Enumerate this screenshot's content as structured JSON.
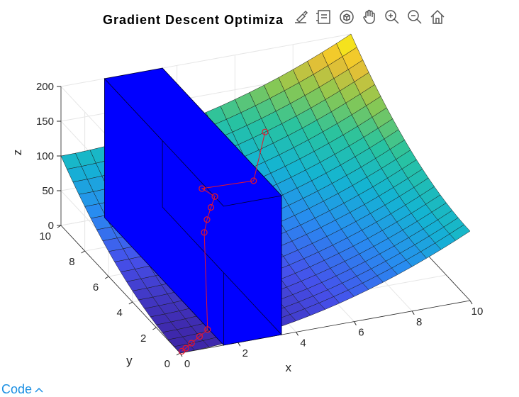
{
  "figure": {
    "title": "Gradient  Descent  Optimiza"
  },
  "toolbar": {
    "buttons": [
      {
        "icon": "brush-icon",
        "label": "Brush"
      },
      {
        "icon": "legend-icon",
        "label": "Legend"
      },
      {
        "icon": "rotate-3d-icon",
        "label": "Rotate 3D"
      },
      {
        "icon": "pan-icon",
        "label": "Pan"
      },
      {
        "icon": "zoom-in-icon",
        "label": "Zoom In"
      },
      {
        "icon": "zoom-out-icon",
        "label": "Zoom Out"
      },
      {
        "icon": "home-icon",
        "label": "Restore View"
      }
    ]
  },
  "code_toggle": {
    "label": "Code",
    "chevron": "^"
  },
  "chart_data": {
    "type": "surface",
    "title": "Gradient  Descent  Optimiza",
    "xlabel": "x",
    "ylabel": "y",
    "zlabel": "z",
    "xlim": [
      0,
      10
    ],
    "ylim": [
      0,
      10
    ],
    "zlim": [
      0,
      200
    ],
    "xticks": [
      "0",
      "2",
      "4",
      "6",
      "8",
      "10"
    ],
    "yticks": [
      "0",
      "2",
      "4",
      "6",
      "8",
      "10"
    ],
    "zticks": [
      "0",
      "50",
      "100",
      "150",
      "200"
    ],
    "grid": true,
    "colormap": "parula",
    "surface": {
      "function": "z = x^2 + y^2",
      "grid_step": 0.5
    },
    "obstacle": {
      "x_range": [
        1.5,
        3.5
      ],
      "y_range": [
        0,
        10
      ],
      "z_range": [
        0,
        200
      ],
      "color": "#0000ff"
    },
    "descent_path": {
      "color": "#e8152b",
      "points": [
        [
          0.1,
          0.1,
          0.02
        ],
        [
          0.3,
          0.25,
          0.15
        ],
        [
          0.6,
          0.5,
          0.6
        ],
        [
          1.0,
          0.8,
          1.6
        ],
        [
          1.4,
          1.1,
          3.2
        ],
        [
          2.6,
          4.3,
          75
        ],
        [
          2.9,
          4.8,
          82
        ],
        [
          3.2,
          5.2,
          90
        ],
        [
          3.5,
          5.6,
          96
        ],
        [
          3.3,
          6.2,
          98
        ],
        [
          5.0,
          6.0,
          100
        ],
        [
          6.3,
          8.2,
          120
        ]
      ]
    }
  }
}
